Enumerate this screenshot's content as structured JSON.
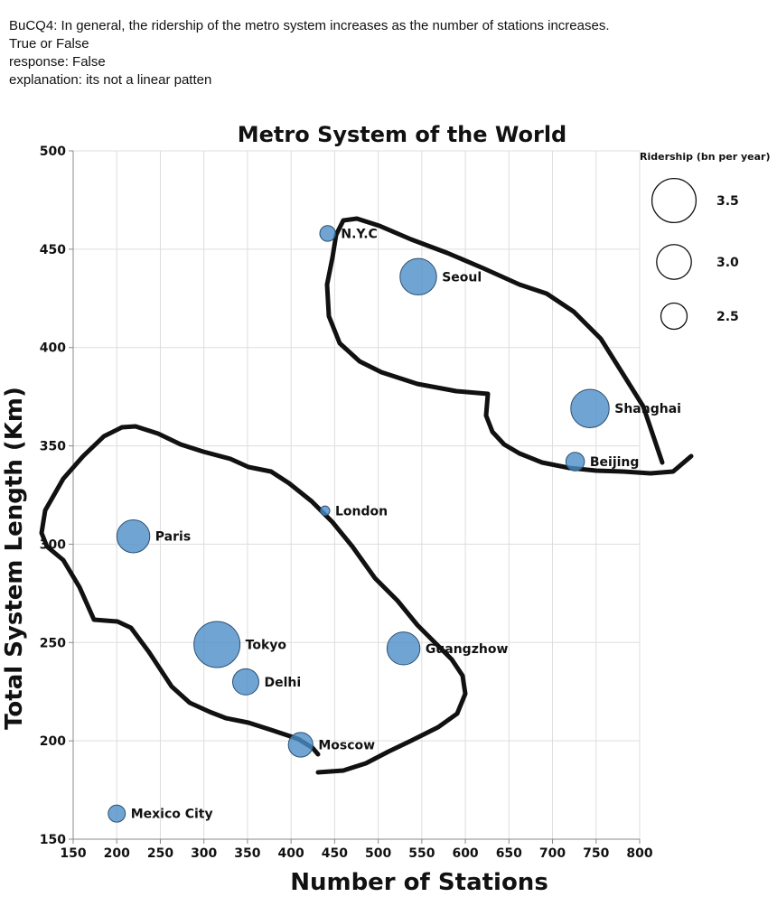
{
  "header": {
    "question": "BuCQ4: In general, the ridership of the metro system increases as the number of stations increases.",
    "options": "True or False",
    "response": "response: False",
    "explanation": "explanation: its not a linear patten"
  },
  "chart_data": {
    "type": "scatter",
    "title": "Metro System of the World",
    "xlabel": "Number of Stations",
    "ylabel": "Total System Length (Km)",
    "xlim": [
      150,
      800
    ],
    "ylim": [
      150,
      500
    ],
    "xticks": [
      150,
      200,
      250,
      300,
      350,
      400,
      450,
      500,
      550,
      600,
      650,
      700,
      750,
      800
    ],
    "yticks": [
      150,
      200,
      250,
      300,
      350,
      400,
      450,
      500
    ],
    "grid": true,
    "size_legend": {
      "title": "Ridership (bn per year)",
      "placement": "top-right",
      "entries": [
        {
          "label": "3.5",
          "value": 3.5
        },
        {
          "label": "3.0",
          "value": 3.0
        },
        {
          "label": "2.5",
          "value": 2.5
        }
      ]
    },
    "points": [
      {
        "label": "N.Y.C",
        "x": 442,
        "y": 458,
        "ridership": 1.8
      },
      {
        "label": "Seoul",
        "x": 546,
        "y": 436,
        "ridership": 3.1
      },
      {
        "label": "Shanghai",
        "x": 743,
        "y": 369,
        "ridership": 3.2
      },
      {
        "label": "Beijing",
        "x": 726,
        "y": 342,
        "ridership": 2.0
      },
      {
        "label": "London",
        "x": 439,
        "y": 317,
        "ridership": 1.3
      },
      {
        "label": "Paris",
        "x": 219,
        "y": 304,
        "ridership": 2.9
      },
      {
        "label": "Tokyo",
        "x": 315,
        "y": 249,
        "ridership": 3.6
      },
      {
        "label": "Delhi",
        "x": 348,
        "y": 230,
        "ridership": 2.5
      },
      {
        "label": "Guangzhow",
        "x": 529,
        "y": 247,
        "ridership": 2.9
      },
      {
        "label": "Moscow",
        "x": 411,
        "y": 198,
        "ridership": 2.4
      },
      {
        "label": "Mexico City",
        "x": 200,
        "y": 163,
        "ridership": 1.9
      }
    ]
  }
}
